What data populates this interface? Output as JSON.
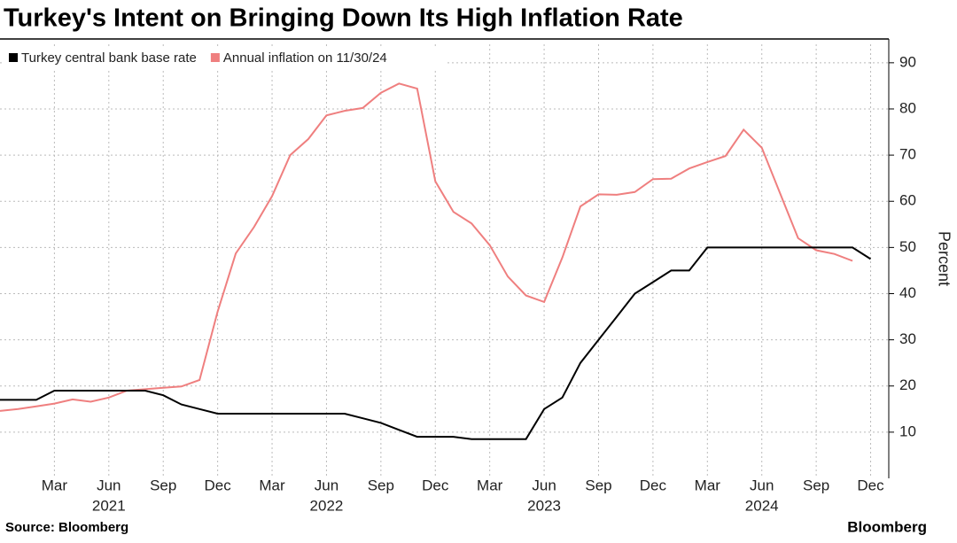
{
  "chart_data": {
    "type": "line",
    "title": "Turkey's Intent on Bringing Down Its High Inflation Rate",
    "y_label": "Percent",
    "source": "Source: Bloomberg",
    "brand": "Bloomberg",
    "x": [
      "2020-12",
      "2021-01",
      "2021-02",
      "2021-03",
      "2021-04",
      "2021-05",
      "2021-06",
      "2021-07",
      "2021-08",
      "2021-09",
      "2021-10",
      "2021-11",
      "2021-12",
      "2022-01",
      "2022-02",
      "2022-03",
      "2022-04",
      "2022-05",
      "2022-06",
      "2022-07",
      "2022-08",
      "2022-09",
      "2022-10",
      "2022-11",
      "2022-12",
      "2023-01",
      "2023-02",
      "2023-03",
      "2023-04",
      "2023-05",
      "2023-06",
      "2023-07",
      "2023-08",
      "2023-09",
      "2023-10",
      "2023-11",
      "2023-12",
      "2024-01",
      "2024-02",
      "2024-03",
      "2024-04",
      "2024-05",
      "2024-06",
      "2024-07",
      "2024-08",
      "2024-09",
      "2024-10",
      "2024-11",
      "2024-12"
    ],
    "series": [
      {
        "name": "Turkey central bank base rate",
        "color": "#000000",
        "values": [
          17,
          17,
          17,
          19,
          19,
          19,
          19,
          19,
          19,
          18,
          16,
          15,
          14,
          14,
          14,
          14,
          14,
          14,
          14,
          14,
          13,
          12,
          10.5,
          9,
          9,
          9,
          8.5,
          8.5,
          8.5,
          8.5,
          15,
          17.5,
          25,
          30,
          35,
          40,
          42.5,
          45,
          45,
          50,
          50,
          50,
          50,
          50,
          50,
          50,
          50,
          50,
          47.5
        ]
      },
      {
        "name": "Annual inflation on 11/30/24",
        "color": "#ef7f7f",
        "values": [
          14.6,
          15.0,
          15.6,
          16.2,
          17.1,
          16.6,
          17.5,
          19.0,
          19.3,
          19.6,
          19.9,
          21.3,
          36.1,
          48.7,
          54.4,
          61.1,
          70.0,
          73.5,
          78.6,
          79.6,
          80.2,
          83.5,
          85.5,
          84.4,
          64.3,
          57.7,
          55.2,
          50.5,
          43.7,
          39.6,
          38.2,
          47.8,
          58.9,
          61.5,
          61.4,
          62.0,
          64.8,
          64.9,
          67.1,
          68.5,
          69.8,
          75.5,
          71.6,
          61.8,
          52.0,
          49.4,
          48.6,
          47.1,
          null
        ]
      }
    ],
    "xlim": [
      "2020-12",
      "2025-01"
    ],
    "xticks": [
      {
        "value": "2021-03",
        "label": "Mar"
      },
      {
        "value": "2021-06",
        "label": "Jun"
      },
      {
        "value": "2021-09",
        "label": "Sep"
      },
      {
        "value": "2021-12",
        "label": "Dec"
      },
      {
        "value": "2022-03",
        "label": "Mar"
      },
      {
        "value": "2022-06",
        "label": "Jun"
      },
      {
        "value": "2022-09",
        "label": "Sep"
      },
      {
        "value": "2022-12",
        "label": "Dec"
      },
      {
        "value": "2023-03",
        "label": "Mar"
      },
      {
        "value": "2023-06",
        "label": "Jun"
      },
      {
        "value": "2023-09",
        "label": "Sep"
      },
      {
        "value": "2023-12",
        "label": "Dec"
      },
      {
        "value": "2024-03",
        "label": "Mar"
      },
      {
        "value": "2024-06",
        "label": "Jun"
      },
      {
        "value": "2024-09",
        "label": "Sep"
      },
      {
        "value": "2024-12",
        "label": "Dec"
      }
    ],
    "year_ticks": [
      {
        "value": "2021-06",
        "label": "2021"
      },
      {
        "value": "2022-06",
        "label": "2022"
      },
      {
        "value": "2023-06",
        "label": "2023"
      },
      {
        "value": "2024-06",
        "label": "2024"
      }
    ],
    "ylim": [
      0,
      94
    ],
    "yticks": [
      10,
      20,
      30,
      40,
      50,
      60,
      70,
      80,
      90
    ],
    "grid": true,
    "legend": "top-left"
  }
}
